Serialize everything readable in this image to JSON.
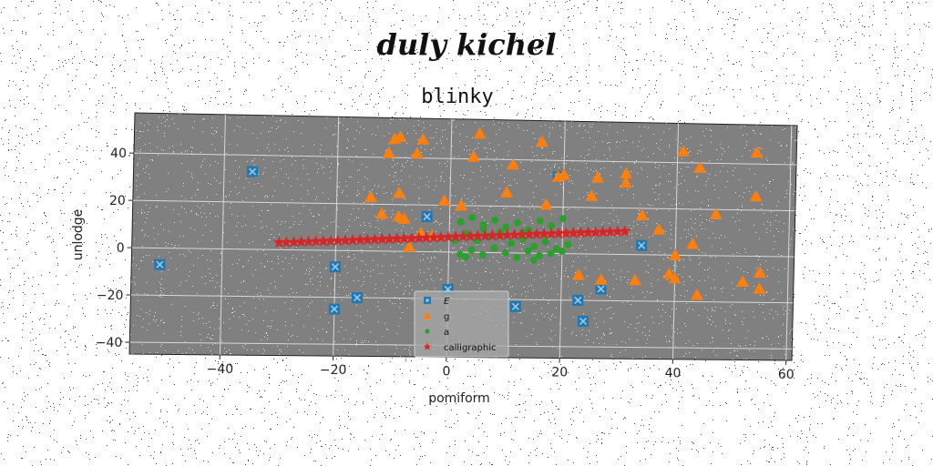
{
  "suptitle": "duly kichel",
  "chart_data": {
    "type": "scatter",
    "title": "blinky",
    "xlabel": "pomiform",
    "ylabel": "unlodge",
    "xlim": [
      -56,
      61
    ],
    "ylim": [
      -45,
      57
    ],
    "xticks": [
      -40,
      -20,
      0,
      20,
      40,
      60
    ],
    "yticks": [
      -40,
      -20,
      0,
      20,
      40
    ],
    "grid": true,
    "legend": "lower-center",
    "background": "#808080",
    "series": [
      {
        "name": "E",
        "marker": "x-square",
        "color": "#1f77b4",
        "points": [
          [
            -35,
            33
          ],
          [
            -51,
            -7
          ],
          [
            -20,
            -7
          ],
          [
            -20,
            -25
          ],
          [
            -16,
            -20
          ],
          [
            -4,
            15
          ],
          [
            0,
            -16
          ],
          [
            12,
            -23
          ],
          [
            19,
            33
          ],
          [
            23,
            -20
          ],
          [
            24,
            -29
          ],
          [
            27,
            -15
          ],
          [
            34,
            4
          ]
        ]
      },
      {
        "name": "g",
        "marker": "triangle",
        "color": "#ff7f0e",
        "points": [
          [
            -10,
            48
          ],
          [
            -9,
            49
          ],
          [
            -5,
            48
          ],
          [
            -11,
            42
          ],
          [
            -6,
            42
          ],
          [
            5,
            51
          ],
          [
            16,
            48
          ],
          [
            4,
            41
          ],
          [
            11,
            38
          ],
          [
            20,
            34
          ],
          [
            19,
            33
          ],
          [
            26,
            33
          ],
          [
            31,
            35
          ],
          [
            31,
            31
          ],
          [
            41,
            45
          ],
          [
            44,
            38
          ],
          [
            54,
            45
          ],
          [
            -14,
            23
          ],
          [
            -9,
            25
          ],
          [
            -12,
            16
          ],
          [
            -9,
            15
          ],
          [
            -8,
            14
          ],
          [
            -5,
            8
          ],
          [
            -3,
            7
          ],
          [
            -7,
            2
          ],
          [
            -1,
            22
          ],
          [
            2,
            20
          ],
          [
            10,
            26
          ],
          [
            17,
            21
          ],
          [
            25,
            25
          ],
          [
            34,
            17
          ],
          [
            37,
            11
          ],
          [
            40,
            0
          ],
          [
            43,
            5
          ],
          [
            47,
            18
          ],
          [
            54,
            26
          ],
          [
            23,
            -9
          ],
          [
            27,
            -11
          ],
          [
            33,
            -11
          ],
          [
            39,
            -8
          ],
          [
            40,
            -10
          ],
          [
            44,
            -17
          ],
          [
            52,
            -11
          ],
          [
            55,
            -7
          ],
          [
            55,
            -14
          ]
        ]
      },
      {
        "name": "a",
        "marker": "circle",
        "color": "#2ca02c",
        "points": [
          [
            2,
            13
          ],
          [
            4,
            15
          ],
          [
            6,
            12
          ],
          [
            8,
            14
          ],
          [
            10,
            11
          ],
          [
            12,
            13
          ],
          [
            14,
            10
          ],
          [
            16,
            14
          ],
          [
            18,
            12
          ],
          [
            20,
            15
          ],
          [
            3,
            8
          ],
          [
            5,
            5
          ],
          [
            7,
            7
          ],
          [
            9,
            9
          ],
          [
            11,
            4
          ],
          [
            13,
            6
          ],
          [
            15,
            3
          ],
          [
            17,
            5
          ],
          [
            19,
            2
          ],
          [
            21,
            4
          ],
          [
            4,
            1
          ],
          [
            6,
            -1
          ],
          [
            8,
            2
          ],
          [
            10,
            0
          ],
          [
            12,
            -2
          ],
          [
            14,
            1
          ],
          [
            16,
            -1
          ],
          [
            18,
            0
          ],
          [
            20,
            1
          ],
          [
            2,
            -1
          ],
          [
            3,
            -2
          ],
          [
            6,
            10
          ],
          [
            13,
            9
          ],
          [
            15,
            -3
          ],
          [
            1,
            5
          ]
        ]
      },
      {
        "name": "calligraphic",
        "marker": "star",
        "color": "#d62728",
        "x_range": [
          -30,
          31
        ],
        "y_range": [
          3,
          10
        ],
        "count": 48
      }
    ]
  }
}
